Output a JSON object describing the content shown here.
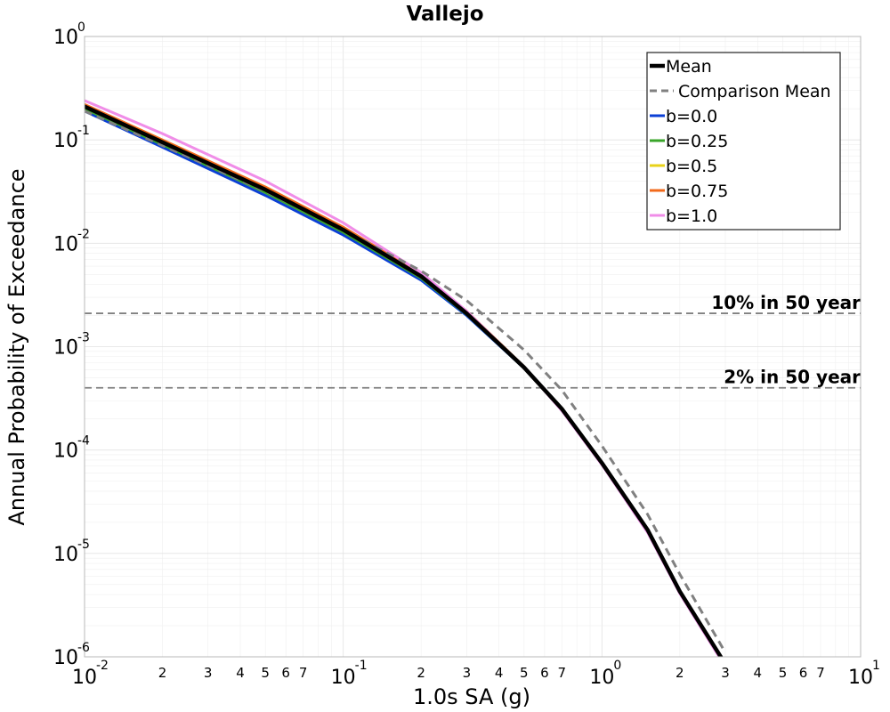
{
  "chart_data": {
    "type": "line",
    "title": "Vallejo",
    "xlabel": "1.0s SA (g)",
    "ylabel": "Annual Probability of Exceedance",
    "xscale": "log",
    "yscale": "log",
    "xlim": [
      0.01,
      10
    ],
    "ylim": [
      1e-06,
      1
    ],
    "grid": true,
    "legend_position": "top-right",
    "x_major_ticks": [
      {
        "value": 0.01,
        "base": "10",
        "exp": "-2"
      },
      {
        "value": 0.1,
        "base": "10",
        "exp": "-1"
      },
      {
        "value": 1,
        "base": "10",
        "exp": "0"
      },
      {
        "value": 10,
        "base": "10",
        "exp": "1"
      }
    ],
    "x_minor_tick_labels": [
      "2",
      "3",
      "4",
      "5",
      "6",
      "7"
    ],
    "y_major_ticks": [
      {
        "value": 1,
        "base": "10",
        "exp": "0"
      },
      {
        "value": 0.1,
        "base": "10",
        "exp": "-1"
      },
      {
        "value": 0.01,
        "base": "10",
        "exp": "-2"
      },
      {
        "value": 0.001,
        "base": "10",
        "exp": "-3"
      },
      {
        "value": 0.0001,
        "base": "10",
        "exp": "-4"
      },
      {
        "value": 1e-05,
        "base": "10",
        "exp": "-5"
      },
      {
        "value": 1e-06,
        "base": "10",
        "exp": "-6"
      }
    ],
    "series": [
      {
        "name": "b=0.0",
        "color": "#0b3fd6",
        "width": 3,
        "dash": "",
        "x": [
          0.01,
          0.02,
          0.05,
          0.1,
          0.2,
          0.3,
          0.5,
          0.7,
          1.0,
          1.5,
          2.0,
          3.0
        ],
        "y": [
          0.19,
          0.085,
          0.029,
          0.012,
          0.0044,
          0.002,
          0.00062,
          0.00025,
          7.5e-05,
          1.7e-05,
          4.3e-06,
          8.5e-07
        ]
      },
      {
        "name": "b=0.25",
        "color": "#3aa52a",
        "width": 3,
        "dash": "",
        "x": [
          0.01,
          0.02,
          0.05,
          0.1,
          0.2,
          0.3,
          0.5,
          0.7,
          1.0,
          1.5,
          2.0,
          3.0
        ],
        "y": [
          0.2,
          0.09,
          0.031,
          0.0128,
          0.0046,
          0.00205,
          0.00062,
          0.00025,
          7.5e-05,
          1.7e-05,
          4.3e-06,
          8.5e-07
        ]
      },
      {
        "name": "b=0.5",
        "color": "#e8d21a",
        "width": 3,
        "dash": "",
        "x": [
          0.01,
          0.02,
          0.05,
          0.1,
          0.2,
          0.3,
          0.5,
          0.7,
          1.0,
          1.5,
          2.0,
          3.0
        ],
        "y": [
          0.21,
          0.095,
          0.033,
          0.0135,
          0.0048,
          0.0021,
          0.00063,
          0.00025,
          7.5e-05,
          1.7e-05,
          4.3e-06,
          8.5e-07
        ]
      },
      {
        "name": "b=0.75",
        "color": "#f26a1b",
        "width": 3,
        "dash": "",
        "x": [
          0.01,
          0.02,
          0.05,
          0.1,
          0.2,
          0.3,
          0.5,
          0.7,
          1.0,
          1.5,
          2.0,
          3.0
        ],
        "y": [
          0.22,
          0.1,
          0.035,
          0.0143,
          0.005,
          0.0022,
          0.00064,
          0.00025,
          7.4e-05,
          1.65e-05,
          4.2e-06,
          8.2e-07
        ]
      },
      {
        "name": "b=1.0",
        "color": "#f08de8",
        "width": 3,
        "dash": "",
        "x": [
          0.01,
          0.02,
          0.05,
          0.1,
          0.2,
          0.3,
          0.5,
          0.7,
          1.0,
          1.5,
          2.0,
          3.0
        ],
        "y": [
          0.24,
          0.115,
          0.04,
          0.0158,
          0.0052,
          0.0022,
          0.00063,
          0.00024,
          7.2e-05,
          1.6e-05,
          4.1e-06,
          8e-07
        ]
      },
      {
        "name": "Mean",
        "color": "#000000",
        "width": 4.5,
        "dash": "",
        "x": [
          0.01,
          0.02,
          0.05,
          0.1,
          0.2,
          0.3,
          0.5,
          0.7,
          1.0,
          1.5,
          2.0,
          3.0
        ],
        "y": [
          0.21,
          0.095,
          0.033,
          0.0135,
          0.0048,
          0.0021,
          0.00063,
          0.00025,
          7.5e-05,
          1.7e-05,
          4.3e-06,
          8.5e-07
        ]
      },
      {
        "name": "Comparison Mean",
        "color": "#808080",
        "width": 3,
        "dash": "9,6",
        "x": [
          0.01,
          0.02,
          0.05,
          0.1,
          0.2,
          0.3,
          0.5,
          0.7,
          1.0,
          1.5,
          2.0,
          3.0
        ],
        "y": [
          0.19,
          0.088,
          0.032,
          0.0135,
          0.0054,
          0.0028,
          0.00093,
          0.00038,
          0.00011,
          2.4e-05,
          6.3e-06,
          1.1e-06
        ]
      }
    ],
    "legend_order": [
      "Mean",
      "Comparison Mean",
      "b=0.0",
      "b=0.25",
      "b=0.5",
      "b=0.75",
      "b=1.0"
    ],
    "reference_lines": [
      {
        "label": "10% in 50 year",
        "y": 0.0021,
        "color": "#808080"
      },
      {
        "label": "2% in 50 year",
        "y": 0.0004,
        "color": "#808080"
      }
    ]
  }
}
